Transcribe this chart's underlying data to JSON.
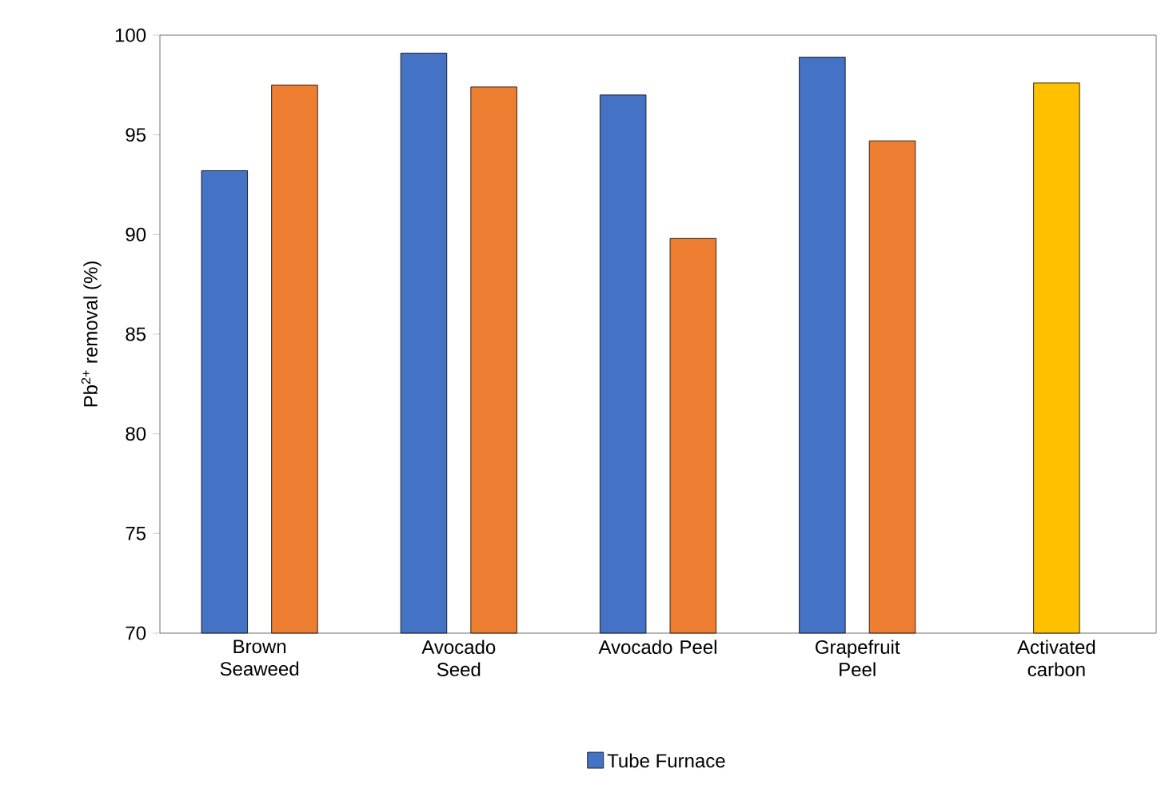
{
  "chart_data": {
    "type": "bar",
    "ylabel": "Pb$^{2+}$ removal (%)",
    "categories": [
      "Brown Seaweed",
      "Avocado Seed",
      "Avocado Peel",
      "Grapefruit Peel",
      "Activated carbon"
    ],
    "series": [
      {
        "name": "Tube Furnace",
        "color": "#4472c4",
        "values": [
          93.2,
          99.1,
          97.0,
          98.9,
          null
        ]
      },
      {
        "color": "#ed7d31",
        "values": [
          97.5,
          97.4,
          89.8,
          94.7,
          null
        ]
      },
      {
        "color": "#ffc000",
        "values": [
          null,
          null,
          null,
          null,
          97.6
        ]
      }
    ],
    "ylim": [
      70,
      100
    ],
    "yticks": [
      70,
      75,
      80,
      85,
      90,
      95,
      100
    ],
    "grid": false,
    "legend": "bottom"
  }
}
